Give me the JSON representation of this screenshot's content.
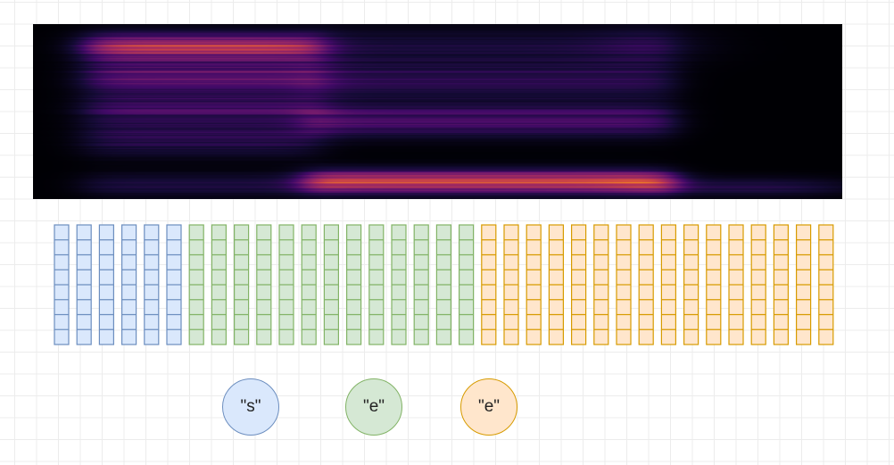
{
  "colors": {
    "grid": "#ececec",
    "spectrogram_bg": "#000000",
    "groups": [
      {
        "fill": "#dae8fc",
        "stroke": "#6c8ebf"
      },
      {
        "fill": "#d5e8d4",
        "stroke": "#82b366"
      },
      {
        "fill": "#ffe6cc",
        "stroke": "#d79b00"
      }
    ]
  },
  "frame_groups": [
    {
      "name": "blue",
      "count": 6,
      "cells": 8
    },
    {
      "name": "green",
      "count": 13,
      "cells": 8
    },
    {
      "name": "orange",
      "count": 16,
      "cells": 8
    }
  ],
  "tokens": [
    {
      "label": "\"s\"",
      "group": 0
    },
    {
      "label": "\"e\"",
      "group": 1
    },
    {
      "label": "\"e\"",
      "group": 2
    }
  ]
}
